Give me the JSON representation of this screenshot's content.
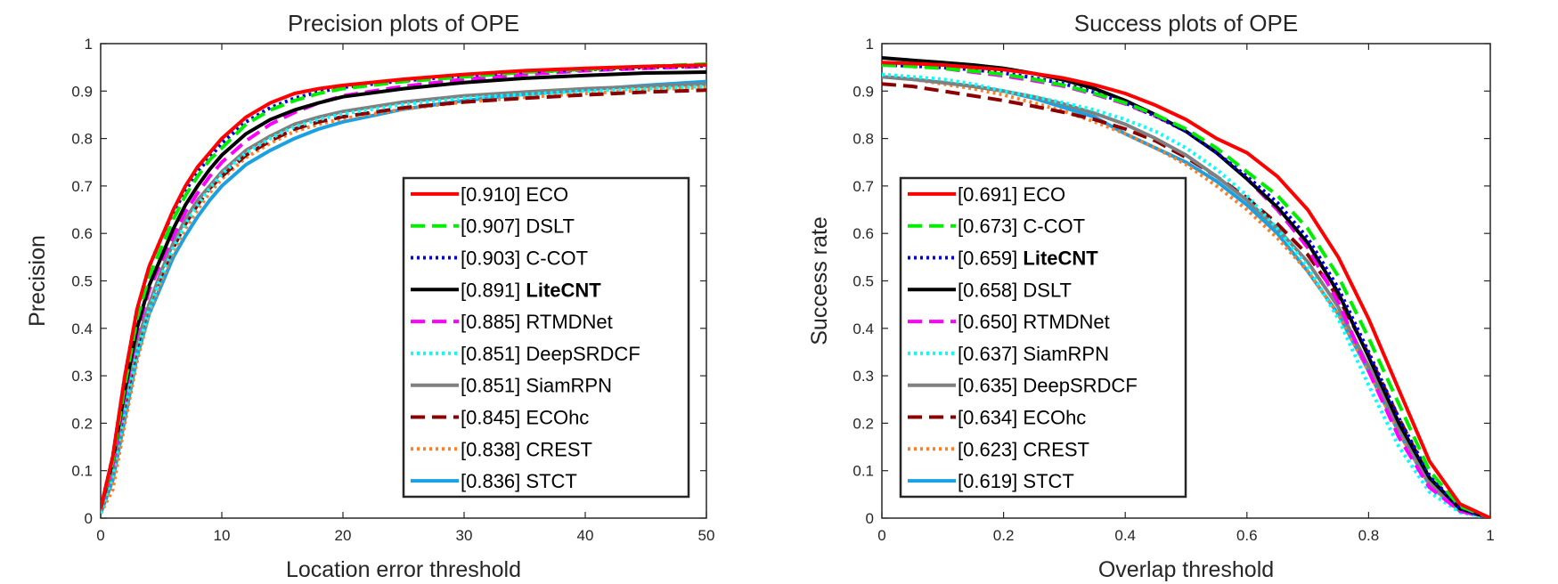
{
  "chart_data": [
    {
      "type": "line",
      "title": "Precision plots of OPE",
      "xlabel": "Location error threshold",
      "ylabel": "Precision",
      "xlim": [
        0,
        50
      ],
      "ylim": [
        0,
        1
      ],
      "xticks": [
        "0",
        "10",
        "20",
        "30",
        "40",
        "50"
      ],
      "yticks": [
        "0",
        "0.1",
        "0.2",
        "0.3",
        "0.4",
        "0.5",
        "0.6",
        "0.7",
        "0.8",
        "0.9",
        "1"
      ],
      "grid": false,
      "legend_position": "bottom-right",
      "x": [
        0,
        1,
        2,
        3,
        4,
        5,
        6,
        7,
        8,
        9,
        10,
        12,
        14,
        16,
        18,
        20,
        25,
        30,
        35,
        40,
        45,
        50
      ],
      "series": [
        {
          "name": "ECO",
          "score": "[0.910]",
          "color": "#ff0000",
          "dash": "solid",
          "bold": false,
          "values": [
            0.02,
            0.13,
            0.3,
            0.44,
            0.53,
            0.59,
            0.65,
            0.7,
            0.74,
            0.77,
            0.8,
            0.845,
            0.875,
            0.895,
            0.905,
            0.912,
            0.925,
            0.935,
            0.943,
            0.948,
            0.952,
            0.955
          ]
        },
        {
          "name": "DSLT",
          "score": "[0.907]",
          "color": "#00ee00",
          "dash": "dashed",
          "bold": false,
          "values": [
            0.02,
            0.12,
            0.28,
            0.42,
            0.51,
            0.57,
            0.63,
            0.68,
            0.72,
            0.755,
            0.78,
            0.83,
            0.86,
            0.88,
            0.895,
            0.905,
            0.92,
            0.93,
            0.94,
            0.946,
            0.952,
            0.957
          ]
        },
        {
          "name": "C-COT",
          "score": "[0.903]",
          "color": "#0000dd",
          "dash": "dotted",
          "bold": false,
          "values": [
            0.02,
            0.13,
            0.3,
            0.44,
            0.53,
            0.59,
            0.645,
            0.69,
            0.73,
            0.76,
            0.79,
            0.835,
            0.865,
            0.885,
            0.898,
            0.908,
            0.922,
            0.932,
            0.94,
            0.945,
            0.95,
            0.953
          ]
        },
        {
          "name": "LiteCNT",
          "score": "[0.891]",
          "color": "#000000",
          "dash": "solid",
          "bold": true,
          "values": [
            0.02,
            0.12,
            0.27,
            0.4,
            0.49,
            0.55,
            0.61,
            0.66,
            0.7,
            0.735,
            0.765,
            0.81,
            0.84,
            0.86,
            0.875,
            0.888,
            0.905,
            0.918,
            0.927,
            0.933,
            0.938,
            0.94
          ]
        },
        {
          "name": "RTMDNet",
          "score": "[0.885]",
          "color": "#ff00ff",
          "dash": "dashed",
          "bold": false,
          "values": [
            0.02,
            0.11,
            0.26,
            0.39,
            0.48,
            0.54,
            0.595,
            0.645,
            0.685,
            0.72,
            0.75,
            0.795,
            0.83,
            0.855,
            0.875,
            0.89,
            0.91,
            0.925,
            0.935,
            0.943,
            0.948,
            0.952
          ]
        },
        {
          "name": "DeepSRDCF",
          "score": "[0.851]",
          "color": "#00ffff",
          "dash": "dotted",
          "bold": false,
          "values": [
            0.01,
            0.09,
            0.23,
            0.35,
            0.44,
            0.51,
            0.57,
            0.62,
            0.66,
            0.695,
            0.725,
            0.77,
            0.8,
            0.825,
            0.84,
            0.852,
            0.872,
            0.885,
            0.893,
            0.9,
            0.905,
            0.91
          ]
        },
        {
          "name": "SiamRPN",
          "score": "[0.851]",
          "color": "#808080",
          "dash": "solid",
          "bold": false,
          "values": [
            0.01,
            0.1,
            0.25,
            0.37,
            0.45,
            0.52,
            0.58,
            0.63,
            0.67,
            0.7,
            0.73,
            0.775,
            0.805,
            0.83,
            0.845,
            0.857,
            0.877,
            0.89,
            0.898,
            0.905,
            0.91,
            0.915
          ]
        },
        {
          "name": "ECOhc",
          "score": "[0.845]",
          "color": "#8b0000",
          "dash": "dashed",
          "bold": false,
          "values": [
            0.01,
            0.1,
            0.24,
            0.36,
            0.45,
            0.51,
            0.57,
            0.62,
            0.66,
            0.695,
            0.72,
            0.765,
            0.795,
            0.82,
            0.835,
            0.846,
            0.865,
            0.877,
            0.885,
            0.892,
            0.898,
            0.902
          ]
        },
        {
          "name": "CREST",
          "score": "[0.838]",
          "color": "#ff7f27",
          "dash": "dotted",
          "bold": false,
          "values": [
            0.01,
            0.06,
            0.2,
            0.33,
            0.43,
            0.5,
            0.56,
            0.61,
            0.65,
            0.685,
            0.715,
            0.76,
            0.79,
            0.815,
            0.83,
            0.842,
            0.862,
            0.877,
            0.887,
            0.895,
            0.902,
            0.908
          ]
        },
        {
          "name": "STCT",
          "score": "[0.836]",
          "color": "#1ba1e2",
          "dash": "solid",
          "bold": false,
          "values": [
            0.01,
            0.08,
            0.21,
            0.34,
            0.43,
            0.49,
            0.55,
            0.595,
            0.635,
            0.67,
            0.7,
            0.745,
            0.775,
            0.8,
            0.82,
            0.835,
            0.862,
            0.88,
            0.893,
            0.903,
            0.912,
            0.92
          ]
        }
      ]
    },
    {
      "type": "line",
      "title": "Success plots of OPE",
      "xlabel": "Overlap threshold",
      "ylabel": "Success rate",
      "xlim": [
        0,
        1
      ],
      "ylim": [
        0,
        1
      ],
      "xticks": [
        "0",
        "0.2",
        "0.4",
        "0.6",
        "0.8",
        "1"
      ],
      "yticks": [
        "0",
        "0.1",
        "0.2",
        "0.3",
        "0.4",
        "0.5",
        "0.6",
        "0.7",
        "0.8",
        "0.9",
        "1"
      ],
      "grid": false,
      "legend_position": "bottom-left",
      "x": [
        0,
        0.05,
        0.1,
        0.15,
        0.2,
        0.25,
        0.3,
        0.35,
        0.4,
        0.45,
        0.5,
        0.55,
        0.6,
        0.65,
        0.7,
        0.75,
        0.8,
        0.85,
        0.9,
        0.95,
        1.0
      ],
      "series": [
        {
          "name": "ECO",
          "score": "[0.691]",
          "color": "#ff0000",
          "dash": "solid",
          "bold": false,
          "values": [
            0.96,
            0.958,
            0.955,
            0.95,
            0.945,
            0.937,
            0.927,
            0.913,
            0.895,
            0.87,
            0.84,
            0.8,
            0.77,
            0.72,
            0.65,
            0.55,
            0.42,
            0.27,
            0.12,
            0.03,
            0.0
          ]
        },
        {
          "name": "C-COT",
          "score": "[0.673]",
          "color": "#00ee00",
          "dash": "dashed",
          "bold": false,
          "values": [
            0.955,
            0.952,
            0.948,
            0.942,
            0.935,
            0.925,
            0.912,
            0.895,
            0.875,
            0.85,
            0.82,
            0.78,
            0.73,
            0.68,
            0.61,
            0.51,
            0.38,
            0.24,
            0.1,
            0.025,
            0.0
          ]
        },
        {
          "name": "LiteCNT",
          "score": "[0.659]",
          "color": "#0000dd",
          "dash": "dotted",
          "bold": true,
          "values": [
            0.955,
            0.953,
            0.95,
            0.945,
            0.938,
            0.928,
            0.915,
            0.897,
            0.875,
            0.847,
            0.815,
            0.77,
            0.72,
            0.665,
            0.59,
            0.485,
            0.35,
            0.21,
            0.09,
            0.02,
            0.0
          ]
        },
        {
          "name": "DSLT",
          "score": "[0.658]",
          "color": "#000000",
          "dash": "solid",
          "bold": false,
          "values": [
            0.97,
            0.965,
            0.96,
            0.955,
            0.948,
            0.937,
            0.923,
            0.905,
            0.88,
            0.85,
            0.815,
            0.77,
            0.715,
            0.655,
            0.58,
            0.475,
            0.34,
            0.2,
            0.085,
            0.02,
            0.0
          ]
        },
        {
          "name": "RTMDNet",
          "score": "[0.650]",
          "color": "#ff00ff",
          "dash": "dashed",
          "bold": false,
          "values": [
            0.96,
            0.955,
            0.948,
            0.94,
            0.932,
            0.922,
            0.91,
            0.893,
            0.873,
            0.847,
            0.815,
            0.77,
            0.715,
            0.65,
            0.57,
            0.455,
            0.31,
            0.17,
            0.065,
            0.015,
            0.0
          ]
        },
        {
          "name": "SiamRPN",
          "score": "[0.637]",
          "color": "#00ffff",
          "dash": "dotted",
          "bold": false,
          "values": [
            0.935,
            0.93,
            0.925,
            0.915,
            0.9,
            0.888,
            0.875,
            0.86,
            0.84,
            0.815,
            0.78,
            0.735,
            0.68,
            0.61,
            0.53,
            0.42,
            0.28,
            0.15,
            0.055,
            0.012,
            0.0
          ]
        },
        {
          "name": "DeepSRDCF",
          "score": "[0.635]",
          "color": "#808080",
          "dash": "solid",
          "bold": false,
          "values": [
            0.93,
            0.925,
            0.918,
            0.91,
            0.9,
            0.888,
            0.872,
            0.853,
            0.83,
            0.8,
            0.765,
            0.72,
            0.67,
            0.61,
            0.54,
            0.445,
            0.32,
            0.19,
            0.075,
            0.015,
            0.0
          ]
        },
        {
          "name": "ECOhc",
          "score": "[0.634]",
          "color": "#8b0000",
          "dash": "dashed",
          "bold": false,
          "values": [
            0.915,
            0.91,
            0.9,
            0.89,
            0.88,
            0.868,
            0.855,
            0.84,
            0.82,
            0.795,
            0.76,
            0.72,
            0.675,
            0.62,
            0.555,
            0.465,
            0.345,
            0.21,
            0.085,
            0.018,
            0.0
          ]
        },
        {
          "name": "CREST",
          "score": "[0.623]",
          "color": "#ff7f27",
          "dash": "dotted",
          "bold": false,
          "values": [
            0.93,
            0.925,
            0.915,
            0.905,
            0.892,
            0.875,
            0.857,
            0.835,
            0.81,
            0.78,
            0.745,
            0.7,
            0.65,
            0.59,
            0.52,
            0.43,
            0.31,
            0.18,
            0.07,
            0.015,
            0.0
          ]
        },
        {
          "name": "STCT",
          "score": "[0.619]",
          "color": "#1ba1e2",
          "dash": "solid",
          "bold": false,
          "values": [
            0.93,
            0.925,
            0.918,
            0.91,
            0.9,
            0.885,
            0.865,
            0.845,
            0.81,
            0.78,
            0.75,
            0.71,
            0.66,
            0.6,
            0.52,
            0.43,
            0.31,
            0.18,
            0.07,
            0.015,
            0.0
          ]
        }
      ]
    }
  ]
}
